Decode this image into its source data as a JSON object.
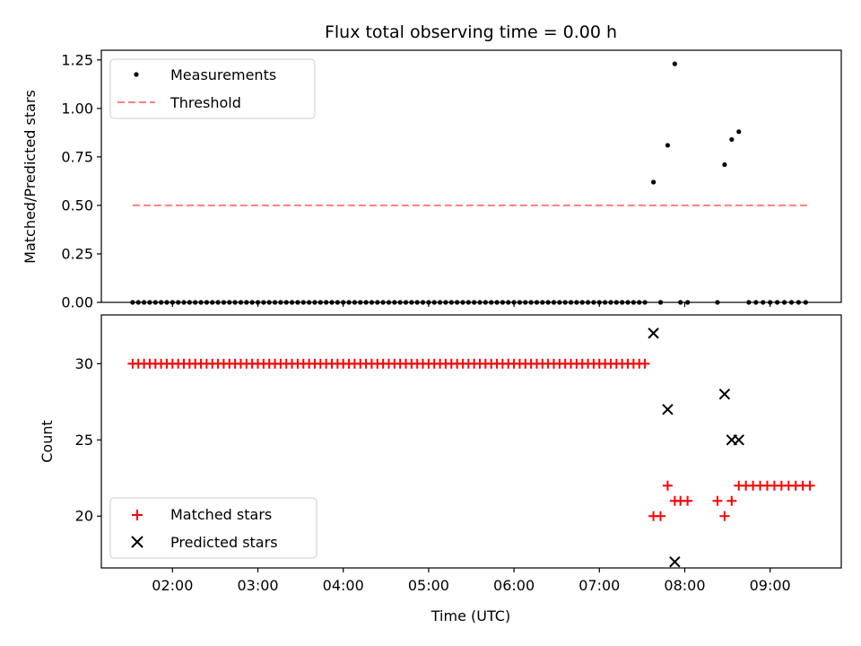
{
  "chart_data": [
    {
      "type": "scatter",
      "title": "Flux total observing time = 0.00 h",
      "xlabel": "",
      "ylabel": "Matched/Predicted stars",
      "ylim": [
        0,
        1.3
      ],
      "yticks": [
        "0.00",
        "0.25",
        "0.50",
        "0.75",
        "1.00",
        "1.25"
      ],
      "ytick_values": [
        0,
        0.25,
        0.5,
        0.75,
        1.0,
        1.25
      ],
      "legend_position": "upper-left",
      "series": [
        {
          "name": "Measurements",
          "marker": "dot",
          "color": "#000000",
          "points": [
            [
              "01:32",
              0
            ],
            [
              "01:36",
              0
            ],
            [
              "01:40",
              0
            ],
            [
              "01:44",
              0
            ],
            [
              "01:48",
              0
            ],
            [
              "01:52",
              0
            ],
            [
              "01:56",
              0
            ],
            [
              "02:00",
              0
            ],
            [
              "02:04",
              0
            ],
            [
              "02:08",
              0
            ],
            [
              "02:12",
              0
            ],
            [
              "02:16",
              0
            ],
            [
              "02:20",
              0
            ],
            [
              "02:24",
              0
            ],
            [
              "02:28",
              0
            ],
            [
              "02:32",
              0
            ],
            [
              "02:36",
              0
            ],
            [
              "02:40",
              0
            ],
            [
              "02:44",
              0
            ],
            [
              "02:48",
              0
            ],
            [
              "02:52",
              0
            ],
            [
              "02:56",
              0
            ],
            [
              "03:00",
              0
            ],
            [
              "03:04",
              0
            ],
            [
              "03:08",
              0
            ],
            [
              "03:12",
              0
            ],
            [
              "03:16",
              0
            ],
            [
              "03:20",
              0
            ],
            [
              "03:24",
              0
            ],
            [
              "03:28",
              0
            ],
            [
              "03:32",
              0
            ],
            [
              "03:36",
              0
            ],
            [
              "03:40",
              0
            ],
            [
              "03:44",
              0
            ],
            [
              "03:48",
              0
            ],
            [
              "03:52",
              0
            ],
            [
              "03:56",
              0
            ],
            [
              "04:00",
              0
            ],
            [
              "04:04",
              0
            ],
            [
              "04:08",
              0
            ],
            [
              "04:12",
              0
            ],
            [
              "04:16",
              0
            ],
            [
              "04:20",
              0
            ],
            [
              "04:24",
              0
            ],
            [
              "04:28",
              0
            ],
            [
              "04:32",
              0
            ],
            [
              "04:36",
              0
            ],
            [
              "04:40",
              0
            ],
            [
              "04:44",
              0
            ],
            [
              "04:48",
              0
            ],
            [
              "04:52",
              0
            ],
            [
              "04:56",
              0
            ],
            [
              "05:00",
              0
            ],
            [
              "05:04",
              0
            ],
            [
              "05:08",
              0
            ],
            [
              "05:12",
              0
            ],
            [
              "05:16",
              0
            ],
            [
              "05:20",
              0
            ],
            [
              "05:24",
              0
            ],
            [
              "05:28",
              0
            ],
            [
              "05:32",
              0
            ],
            [
              "05:36",
              0
            ],
            [
              "05:40",
              0
            ],
            [
              "05:44",
              0
            ],
            [
              "05:48",
              0
            ],
            [
              "05:52",
              0
            ],
            [
              "05:56",
              0
            ],
            [
              "06:00",
              0
            ],
            [
              "06:04",
              0
            ],
            [
              "06:08",
              0
            ],
            [
              "06:12",
              0
            ],
            [
              "06:16",
              0
            ],
            [
              "06:20",
              0
            ],
            [
              "06:24",
              0
            ],
            [
              "06:28",
              0
            ],
            [
              "06:32",
              0
            ],
            [
              "06:36",
              0
            ],
            [
              "06:40",
              0
            ],
            [
              "06:44",
              0
            ],
            [
              "06:48",
              0
            ],
            [
              "06:52",
              0
            ],
            [
              "06:56",
              0
            ],
            [
              "07:00",
              0
            ],
            [
              "07:04",
              0
            ],
            [
              "07:08",
              0
            ],
            [
              "07:12",
              0
            ],
            [
              "07:16",
              0
            ],
            [
              "07:20",
              0
            ],
            [
              "07:24",
              0
            ],
            [
              "07:28",
              0
            ],
            [
              "07:32",
              0
            ],
            [
              "07:38",
              0.62
            ],
            [
              "07:43",
              0
            ],
            [
              "07:48",
              0.81
            ],
            [
              "07:53",
              1.23
            ],
            [
              "07:57",
              0
            ],
            [
              "08:02",
              0
            ],
            [
              "08:23",
              0
            ],
            [
              "08:28",
              0.71
            ],
            [
              "08:33",
              0.84
            ],
            [
              "08:38",
              0.88
            ],
            [
              "08:45",
              0
            ],
            [
              "08:50",
              0
            ],
            [
              "08:55",
              0
            ],
            [
              "09:00",
              0
            ],
            [
              "09:05",
              0
            ],
            [
              "09:10",
              0
            ],
            [
              "09:15",
              0
            ],
            [
              "09:20",
              0
            ],
            [
              "09:25",
              0
            ]
          ]
        },
        {
          "name": "Threshold",
          "style": "dashed-line",
          "color": "#ff7f7f",
          "points": [
            [
              "01:32",
              0.5
            ],
            [
              "09:27",
              0.5
            ]
          ]
        }
      ]
    },
    {
      "type": "scatter",
      "title": "",
      "xlabel": "Time (UTC)",
      "ylabel": "Count",
      "ylim": [
        16.6,
        33.2
      ],
      "yticks": [
        "20",
        "25",
        "30"
      ],
      "ytick_values": [
        20,
        25,
        30
      ],
      "xlim": [
        "01:10",
        "09:50"
      ],
      "xticks": [
        "02:00",
        "03:00",
        "04:00",
        "05:00",
        "06:00",
        "07:00",
        "08:00",
        "09:00"
      ],
      "legend_position": "lower-left",
      "series": [
        {
          "name": "Matched stars",
          "marker": "plus",
          "color": "#ff0000",
          "points": [
            [
              "01:32",
              30
            ],
            [
              "01:36",
              30
            ],
            [
              "01:40",
              30
            ],
            [
              "01:44",
              30
            ],
            [
              "01:48",
              30
            ],
            [
              "01:52",
              30
            ],
            [
              "01:56",
              30
            ],
            [
              "02:00",
              30
            ],
            [
              "02:04",
              30
            ],
            [
              "02:08",
              30
            ],
            [
              "02:12",
              30
            ],
            [
              "02:16",
              30
            ],
            [
              "02:20",
              30
            ],
            [
              "02:24",
              30
            ],
            [
              "02:28",
              30
            ],
            [
              "02:32",
              30
            ],
            [
              "02:36",
              30
            ],
            [
              "02:40",
              30
            ],
            [
              "02:44",
              30
            ],
            [
              "02:48",
              30
            ],
            [
              "02:52",
              30
            ],
            [
              "02:56",
              30
            ],
            [
              "03:00",
              30
            ],
            [
              "03:04",
              30
            ],
            [
              "03:08",
              30
            ],
            [
              "03:12",
              30
            ],
            [
              "03:16",
              30
            ],
            [
              "03:20",
              30
            ],
            [
              "03:24",
              30
            ],
            [
              "03:28",
              30
            ],
            [
              "03:32",
              30
            ],
            [
              "03:36",
              30
            ],
            [
              "03:40",
              30
            ],
            [
              "03:44",
              30
            ],
            [
              "03:48",
              30
            ],
            [
              "03:52",
              30
            ],
            [
              "03:56",
              30
            ],
            [
              "04:00",
              30
            ],
            [
              "04:04",
              30
            ],
            [
              "04:08",
              30
            ],
            [
              "04:12",
              30
            ],
            [
              "04:16",
              30
            ],
            [
              "04:20",
              30
            ],
            [
              "04:24",
              30
            ],
            [
              "04:28",
              30
            ],
            [
              "04:32",
              30
            ],
            [
              "04:36",
              30
            ],
            [
              "04:40",
              30
            ],
            [
              "04:44",
              30
            ],
            [
              "04:48",
              30
            ],
            [
              "04:52",
              30
            ],
            [
              "04:56",
              30
            ],
            [
              "05:00",
              30
            ],
            [
              "05:04",
              30
            ],
            [
              "05:08",
              30
            ],
            [
              "05:12",
              30
            ],
            [
              "05:16",
              30
            ],
            [
              "05:20",
              30
            ],
            [
              "05:24",
              30
            ],
            [
              "05:28",
              30
            ],
            [
              "05:32",
              30
            ],
            [
              "05:36",
              30
            ],
            [
              "05:40",
              30
            ],
            [
              "05:44",
              30
            ],
            [
              "05:48",
              30
            ],
            [
              "05:52",
              30
            ],
            [
              "05:56",
              30
            ],
            [
              "06:00",
              30
            ],
            [
              "06:04",
              30
            ],
            [
              "06:08",
              30
            ],
            [
              "06:12",
              30
            ],
            [
              "06:16",
              30
            ],
            [
              "06:20",
              30
            ],
            [
              "06:24",
              30
            ],
            [
              "06:28",
              30
            ],
            [
              "06:32",
              30
            ],
            [
              "06:36",
              30
            ],
            [
              "06:40",
              30
            ],
            [
              "06:44",
              30
            ],
            [
              "06:48",
              30
            ],
            [
              "06:52",
              30
            ],
            [
              "06:56",
              30
            ],
            [
              "07:00",
              30
            ],
            [
              "07:04",
              30
            ],
            [
              "07:08",
              30
            ],
            [
              "07:12",
              30
            ],
            [
              "07:16",
              30
            ],
            [
              "07:20",
              30
            ],
            [
              "07:24",
              30
            ],
            [
              "07:28",
              30
            ],
            [
              "07:32",
              30
            ],
            [
              "07:38",
              20
            ],
            [
              "07:43",
              20
            ],
            [
              "07:48",
              22
            ],
            [
              "07:53",
              21
            ],
            [
              "07:57",
              21
            ],
            [
              "08:02",
              21
            ],
            [
              "08:23",
              21
            ],
            [
              "08:28",
              20
            ],
            [
              "08:33",
              21
            ],
            [
              "08:38",
              22
            ],
            [
              "08:43",
              22
            ],
            [
              "08:48",
              22
            ],
            [
              "08:53",
              22
            ],
            [
              "08:58",
              22
            ],
            [
              "09:03",
              22
            ],
            [
              "09:08",
              22
            ],
            [
              "09:13",
              22
            ],
            [
              "09:18",
              22
            ],
            [
              "09:23",
              22
            ],
            [
              "09:28",
              22
            ]
          ]
        },
        {
          "name": "Predicted stars",
          "marker": "x",
          "color": "#000000",
          "points": [
            [
              "07:38",
              32
            ],
            [
              "07:48",
              27
            ],
            [
              "07:53",
              17
            ],
            [
              "08:28",
              28
            ],
            [
              "08:33",
              25
            ],
            [
              "08:38",
              25
            ]
          ]
        }
      ]
    }
  ]
}
